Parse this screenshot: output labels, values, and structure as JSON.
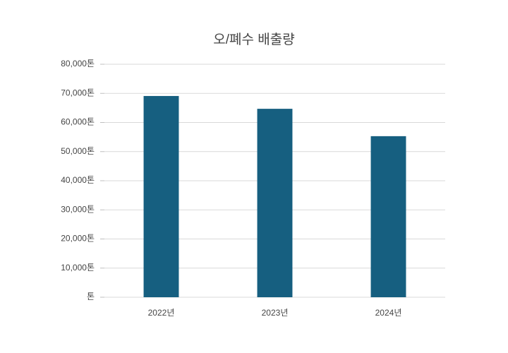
{
  "chart_data": {
    "type": "bar",
    "title": "오/폐수 배출량",
    "categories": [
      "2022년",
      "2023년",
      "2024년"
    ],
    "values": [
      69100,
      64700,
      55300
    ],
    "color": "#165f80",
    "ylim": [
      0,
      80000
    ],
    "yticks": [
      {
        "value": 0,
        "label": "톤"
      },
      {
        "value": 10000,
        "label": "10,000톤"
      },
      {
        "value": 20000,
        "label": "20,000톤"
      },
      {
        "value": 30000,
        "label": "30,000톤"
      },
      {
        "value": 40000,
        "label": "40,000톤"
      },
      {
        "value": 50000,
        "label": "50,000톤"
      },
      {
        "value": 60000,
        "label": "60,000톤"
      },
      {
        "value": 70000,
        "label": "70,000톤"
      },
      {
        "value": 80000,
        "label": "80,000톤"
      }
    ],
    "grid": true
  }
}
